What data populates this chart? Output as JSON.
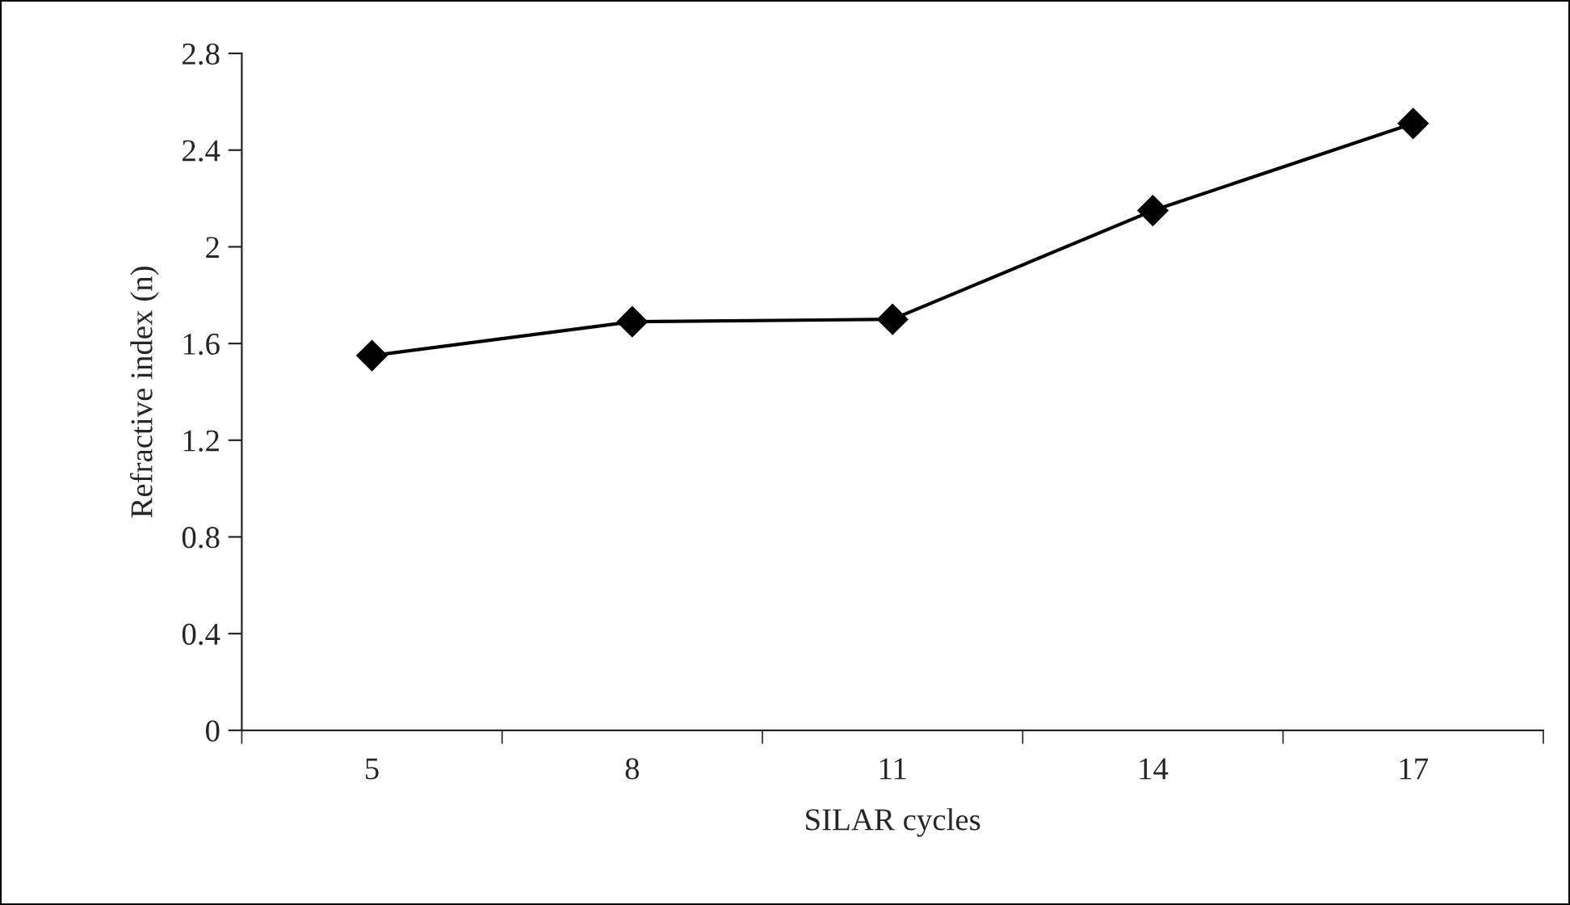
{
  "chart_data": {
    "type": "line",
    "xlabel": "SILAR cycles",
    "ylabel": "Refractive index (n)",
    "categories": [
      "5",
      "8",
      "11",
      "14",
      "17"
    ],
    "series": [
      {
        "color": "#000000",
        "values": [
          1.55,
          1.69,
          1.7,
          2.15,
          2.51
        ]
      }
    ],
    "ylim": [
      0,
      2.8
    ],
    "yticks": [
      0,
      0.4,
      0.8,
      1.2,
      1.6,
      2,
      2.4,
      2.8
    ],
    "marker": "diamond",
    "line_style": "solid"
  }
}
